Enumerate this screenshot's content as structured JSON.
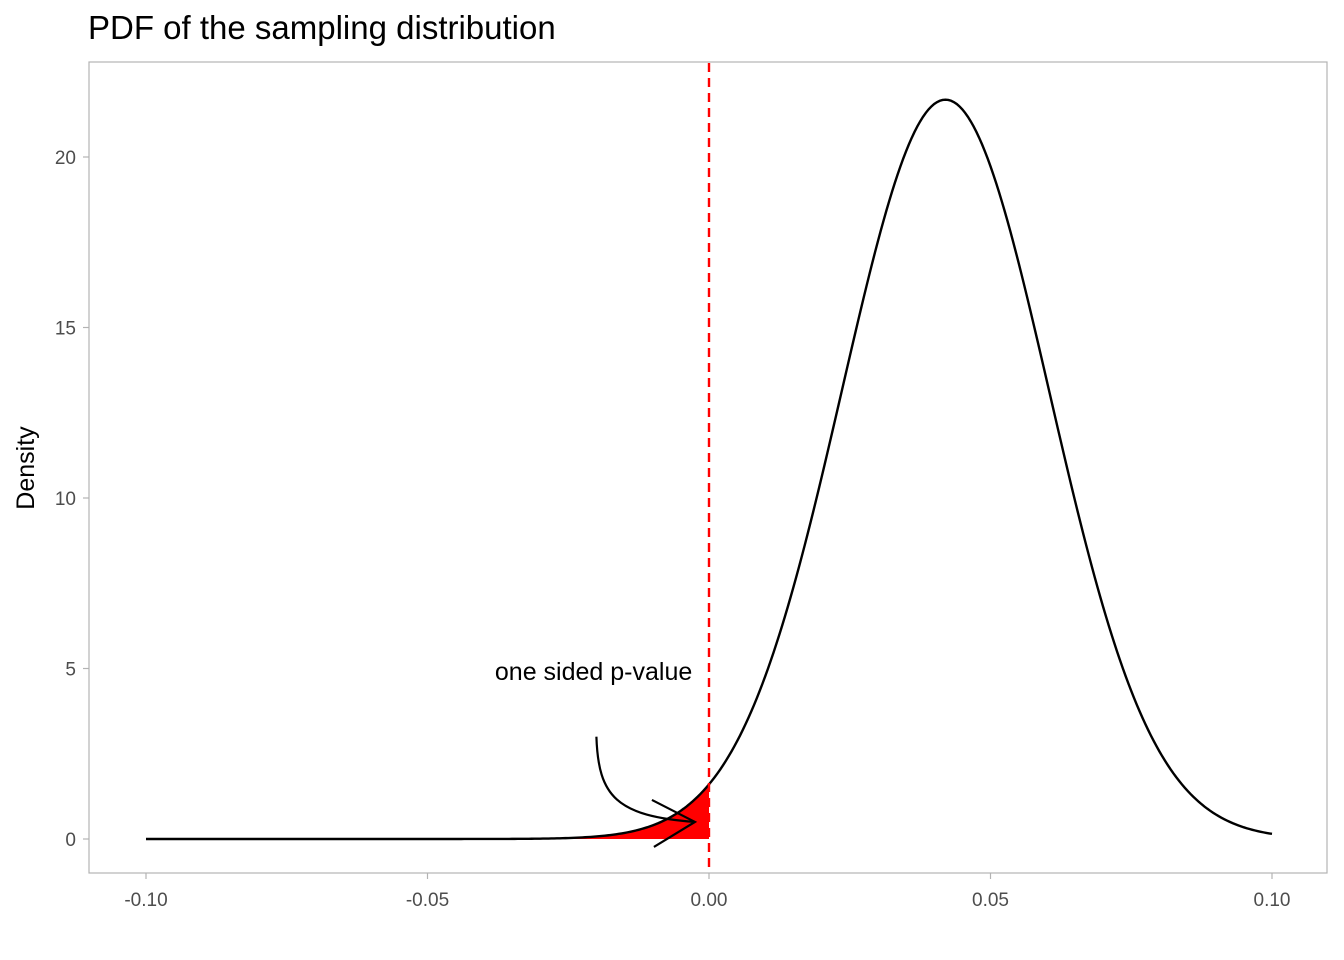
{
  "chart_data": {
    "type": "line",
    "title": "PDF of the sampling distribution",
    "xlabel": "",
    "ylabel": "Density",
    "xlim": [
      -0.1,
      0.1
    ],
    "ylim": [
      0,
      22
    ],
    "x_ticks": [
      -0.1,
      -0.05,
      0.0,
      0.05,
      0.1
    ],
    "x_tick_labels": [
      "-0.10",
      "-0.05",
      "0.00",
      "0.05",
      "0.10"
    ],
    "y_ticks": [
      0,
      5,
      10,
      15,
      20
    ],
    "y_tick_labels": [
      "0",
      "5",
      "10",
      "15",
      "20"
    ],
    "grid": false,
    "legend": "none",
    "series": [
      {
        "distribution": "normal",
        "mean": 0.042,
        "sd": 0.0184,
        "x_range": [
          -0.1,
          0.1
        ],
        "color": "#000000"
      }
    ],
    "shaded_region": {
      "x_from": -0.1,
      "x_to": 0.0,
      "color": "#ff0000"
    },
    "vline": {
      "x": 0.0,
      "color": "#ff0000",
      "style": "dashed"
    },
    "annotation": {
      "text": "one sided p-value",
      "text_x": -0.0205,
      "text_y": 4.9,
      "arrow_from": [
        -0.02,
        3.0
      ],
      "arrow_to": [
        -0.0025,
        0.5
      ]
    }
  }
}
